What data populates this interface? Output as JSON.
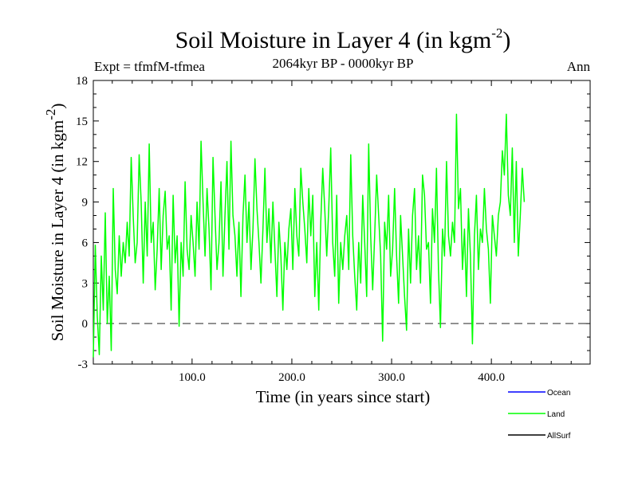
{
  "chart_data": {
    "type": "line",
    "title": "Soil Moisture in Layer 4 (in kgm",
    "title_exponent": "-2",
    "title_close": ")",
    "subtitle": "2064kyr BP - 0000kyr BP",
    "experiment": "Expt = tfmfM-tfmea",
    "season": "Ann",
    "xlabel": "Time (in years since start)",
    "ylabel": "Soil Moisture in Layer 4 (in kgm",
    "ylabel_exponent": "-2",
    "ylabel_close": ")",
    "xlim": [
      1,
      499
    ],
    "ylim": [
      -3,
      18
    ],
    "x_ticks": [
      100,
      200,
      300,
      400
    ],
    "x_tick_labels": [
      "100.0",
      "200.0",
      "300.0",
      "400.0"
    ],
    "y_ticks": [
      -3,
      0,
      3,
      6,
      9,
      12,
      15,
      18
    ],
    "y_tick_labels": [
      "-3",
      "0",
      "3",
      "6",
      "9",
      "12",
      "15",
      "18"
    ],
    "reference_line": 0,
    "series": [
      {
        "name": "Land",
        "color": "#00ff00",
        "x_start": 1,
        "x_step": 2,
        "values": [
          -2.5,
          5.8,
          0.5,
          -2.3,
          5.0,
          1.0,
          8.2,
          0.0,
          3.5,
          -2.0,
          10.0,
          4.0,
          2.2,
          6.5,
          3.5,
          6.0,
          4.5,
          7.5,
          5.0,
          12.3,
          8.0,
          4.5,
          6.0,
          12.5,
          9.0,
          3.0,
          9.0,
          5.0,
          13.3,
          6.0,
          7.5,
          2.5,
          5.5,
          10.0,
          4.0,
          8.0,
          9.8,
          5.5,
          6.5,
          1.0,
          9.5,
          4.5,
          6.5,
          -0.2,
          6.0,
          3.5,
          10.5,
          5.5,
          4.0,
          8.0,
          6.0,
          3.5,
          9.0,
          5.5,
          13.5,
          9.0,
          5.0,
          10.0,
          7.0,
          2.5,
          12.3,
          8.0,
          4.0,
          6.0,
          10.5,
          3.5,
          8.0,
          12.0,
          5.5,
          13.5,
          8.0,
          6.5,
          3.5,
          7.5,
          2.0,
          8.0,
          11.0,
          6.0,
          9.0,
          4.0,
          7.0,
          12.2,
          8.5,
          6.0,
          3.0,
          7.0,
          11.5,
          6.0,
          8.5,
          4.5,
          9.0,
          5.5,
          2.0,
          7.5,
          5.0,
          1.0,
          6.0,
          4.0,
          7.0,
          8.5,
          4.0,
          10.0,
          6.5,
          5.0,
          11.5,
          9.0,
          7.0,
          4.5,
          10.0,
          6.5,
          9.5,
          2.0,
          6.0,
          1.0,
          7.5,
          11.5,
          8.5,
          5.0,
          8.5,
          13.0,
          6.0,
          3.5,
          9.5,
          1.5,
          6.0,
          4.0,
          6.5,
          8.0,
          4.0,
          12.5,
          6.5,
          3.5,
          1.0,
          6.0,
          3.0,
          9.5,
          6.0,
          2.0,
          13.3,
          6.5,
          2.5,
          6.5,
          11.0,
          8.0,
          5.0,
          -1.3,
          7.5,
          5.5,
          9.5,
          3.5,
          5.5,
          10.0,
          5.0,
          1.5,
          8.0,
          5.0,
          2.0,
          -0.5,
          7.0,
          3.0,
          8.0,
          10.0,
          4.0,
          6.5,
          3.0,
          11.0,
          9.5,
          5.5,
          6.0,
          1.5,
          8.5,
          6.0,
          11.5,
          4.0,
          -0.3,
          7.0,
          5.0,
          12.0,
          6.5,
          5.0,
          7.5,
          6.0,
          15.5,
          8.5,
          10.0,
          4.0,
          7.0,
          2.0,
          8.5,
          5.0,
          -1.5,
          6.5,
          9.5,
          4.0,
          7.0,
          6.0,
          10.0,
          7.0,
          5.5,
          1.5,
          8.0,
          6.5,
          5.0,
          8.0,
          9.0,
          12.8,
          11.0,
          15.5,
          9.5,
          8.0,
          13.0,
          6.0,
          12.0,
          5.0,
          8.0,
          11.5,
          9.0
        ]
      }
    ],
    "legend": [
      {
        "label": "Ocean",
        "color": "#0000ff"
      },
      {
        "label": "Land",
        "color": "#00ff00"
      },
      {
        "label": "AllSurf",
        "color": "#000000"
      }
    ]
  }
}
